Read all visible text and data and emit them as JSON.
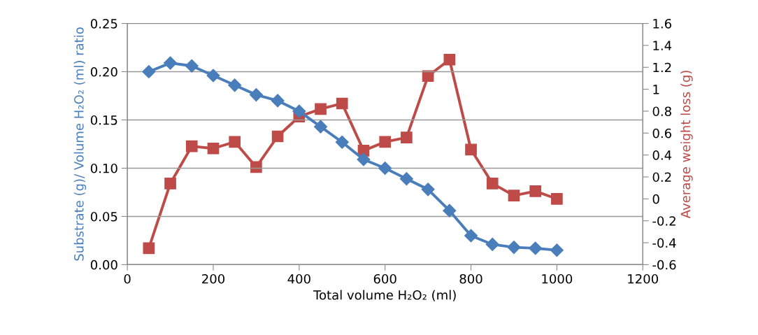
{
  "chart_data": {
    "type": "line",
    "xlabel": "Total volume H₂O₂ (ml)",
    "ylabel": "Substrate (g)/ Volume H₂O₂ (ml) ratio",
    "y2label": "Average weight loss (g)",
    "x": [
      50,
      100,
      150,
      200,
      250,
      300,
      350,
      400,
      450,
      500,
      550,
      600,
      650,
      700,
      750,
      800,
      850,
      900,
      950,
      1000
    ],
    "series": [
      {
        "color": "#4a7ebb",
        "marker": "diamond",
        "values": [
          0.2,
          0.209,
          0.206,
          0.196,
          0.186,
          0.176,
          0.17,
          0.159,
          0.143,
          0.127,
          0.109,
          0.1,
          0.089,
          0.078,
          0.056,
          0.03,
          0.021,
          0.018,
          0.017,
          0.015
        ]
      },
      {
        "color": "#be4b48",
        "marker": "square",
        "axis": "y2",
        "values": [
          -0.45,
          0.14,
          0.48,
          0.46,
          0.52,
          0.29,
          0.57,
          0.75,
          0.82,
          0.87,
          0.44,
          0.52,
          0.56,
          1.12,
          1.27,
          0.45,
          0.14,
          0.03,
          0.07,
          0.0
        ]
      }
    ],
    "xlim": [
      0,
      1200
    ],
    "xticks": [
      0,
      200,
      400,
      600,
      800,
      1000,
      1200
    ],
    "ylim": [
      0,
      0.25
    ],
    "yticks": [
      {
        "value": 0,
        "label": "0.00"
      },
      0.05,
      {
        "value": 0.1,
        "label": "0.10"
      },
      0.15,
      {
        "value": 0.2,
        "label": "0.20"
      },
      0.25
    ],
    "y2lim": [
      -0.6,
      1.6
    ],
    "y2ticks": [
      -0.6,
      -0.4,
      -0.2,
      0,
      0.2,
      0.4,
      0.6,
      0.8,
      1,
      1.2,
      1.4,
      1.6
    ],
    "grid": "y",
    "legend": false,
    "line_style": "solid"
  }
}
